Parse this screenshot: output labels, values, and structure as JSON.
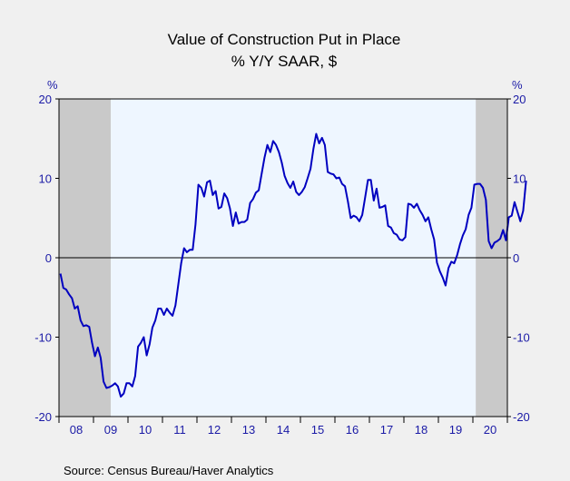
{
  "chart_data": {
    "type": "line",
    "title": "Value of Construction Put in Place",
    "subtitle": "% Y/Y   SAAR, $",
    "ylabel_left": "%",
    "ylabel_right": "%",
    "ylim": [
      -20,
      20
    ],
    "yticks": [
      20,
      10,
      0,
      -10,
      -20
    ],
    "ytick_labels_left": [
      "20",
      "10",
      "0",
      "-10",
      "-20"
    ],
    "ytick_labels_right": [
      "20",
      "10",
      "0",
      "-10",
      "-20"
    ],
    "xlim": [
      "2008-01",
      "2020-12"
    ],
    "x_tick_labels": [
      "08",
      "09",
      "10",
      "11",
      "12",
      "13",
      "14",
      "15",
      "16",
      "17",
      "18",
      "19",
      "20"
    ],
    "grid": false,
    "zero_line": true,
    "recession_shading": [
      {
        "start": "2008-01",
        "end": "2009-06"
      },
      {
        "start": "2020-02",
        "end": "2020-12"
      }
    ],
    "series": [
      {
        "x_start": "2008-01",
        "frequency": "monthly",
        "color": "#0000c0",
        "values": [
          -2.0,
          -3.8,
          -4.0,
          -4.6,
          -5.1,
          -6.4,
          -6.1,
          -7.9,
          -8.6,
          -8.5,
          -8.7,
          -10.7,
          -12.4,
          -11.3,
          -12.6,
          -15.6,
          -16.4,
          -16.3,
          -16.1,
          -15.8,
          -16.2,
          -17.5,
          -17.1,
          -15.8,
          -15.8,
          -16.2,
          -14.9,
          -11.2,
          -10.7,
          -10.0,
          -12.3,
          -10.9,
          -8.8,
          -7.9,
          -6.4,
          -6.4,
          -7.2,
          -6.4,
          -6.9,
          -7.3,
          -6.0,
          -3.4,
          -0.7,
          1.2,
          0.7,
          1.0,
          1.0,
          4.2,
          9.2,
          8.8,
          7.7,
          9.5,
          9.7,
          7.9,
          8.4,
          6.2,
          6.4,
          8.1,
          7.5,
          6.2,
          4.0,
          5.7,
          4.3,
          4.5,
          4.5,
          4.8,
          6.9,
          7.4,
          8.2,
          8.5,
          10.6,
          12.6,
          14.2,
          13.3,
          14.7,
          14.2,
          13.3,
          12.0,
          10.3,
          9.4,
          8.8,
          9.6,
          8.3,
          7.9,
          8.3,
          8.9,
          10.0,
          11.2,
          13.7,
          15.6,
          14.4,
          15.1,
          14.2,
          10.8,
          10.6,
          10.5,
          10.0,
          10.1,
          9.3,
          9.0,
          7.1,
          5.0,
          5.3,
          5.1,
          4.6,
          5.4,
          7.6,
          9.8,
          9.8,
          7.2,
          8.7,
          6.3,
          6.4,
          6.6,
          4.0,
          3.8,
          3.1,
          2.9,
          2.3,
          2.2,
          2.6,
          6.8,
          6.7,
          6.3,
          6.8,
          6.0,
          5.4,
          4.6,
          5.1,
          3.6,
          2.3,
          -0.6,
          -1.7,
          -2.5,
          -3.5,
          -1.3,
          -0.5,
          -0.7,
          0.3,
          1.7,
          2.8,
          3.6,
          5.4,
          6.3,
          9.2,
          9.3,
          9.3,
          8.8,
          7.3,
          2.1,
          1.2,
          1.9,
          2.1,
          2.4,
          3.5,
          2.2,
          5.1,
          5.3,
          7.0,
          5.8,
          4.6,
          5.9,
          9.7
        ]
      }
    ]
  },
  "source": "Source:   Census Bureau/Haver Analytics",
  "colors": {
    "background": "#f0f0f0",
    "plot_background": "#eef6ff",
    "recession": "#c9c9c9",
    "line": "#0000c0",
    "axis_text": "#1a1aa6"
  }
}
